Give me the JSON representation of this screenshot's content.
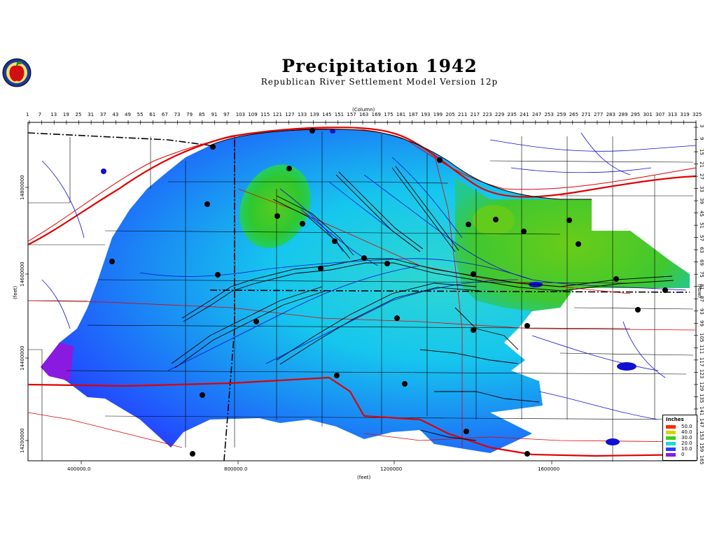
{
  "title": "Precipitation 1942",
  "subtitle": "Republican River Settlement Model Version 12p",
  "logo": {
    "icon": "apple-logo-icon"
  },
  "axes": {
    "column_label": "(Column)",
    "row_label": "(Row)",
    "x_label": "(feet)",
    "y_label": "(feet)",
    "column_ticks": [
      "1",
      "7",
      "13",
      "19",
      "25",
      "31",
      "37",
      "43",
      "49",
      "55",
      "61",
      "67",
      "73",
      "79",
      "85",
      "91",
      "97",
      "103",
      "109",
      "115",
      "121",
      "127",
      "133",
      "139",
      "145",
      "151",
      "157",
      "163",
      "169",
      "175",
      "181",
      "187",
      "193",
      "199",
      "205",
      "211",
      "217",
      "223",
      "229",
      "235",
      "241",
      "247",
      "253",
      "259",
      "265",
      "271",
      "277",
      "283",
      "289",
      "295",
      "301",
      "307",
      "313",
      "319",
      "325"
    ],
    "row_ticks": [
      "3",
      "9",
      "15",
      "21",
      "27",
      "33",
      "39",
      "45",
      "51",
      "57",
      "63",
      "69",
      "75",
      "81",
      "87",
      "93",
      "99",
      "105",
      "111",
      "117",
      "123",
      "129",
      "135",
      "141",
      "147",
      "153",
      "159",
      "165"
    ],
    "x_ticks": [
      "400000.0",
      "800000.0",
      "1200000",
      "1600000"
    ],
    "y_ticks": [
      "14800000",
      "14600000",
      "14400000",
      "14200000"
    ]
  },
  "legend": {
    "title": "Inches",
    "items": [
      {
        "label": "50.0",
        "color": "#ff2a00"
      },
      {
        "label": "40.0",
        "color": "#d4d400"
      },
      {
        "label": "30.0",
        "color": "#3fcc1a"
      },
      {
        "label": "20.0",
        "color": "#1ad7e0"
      },
      {
        "label": "10.0",
        "color": "#2a3cff"
      },
      {
        "label": "0",
        "color": "#8a1ae0"
      }
    ]
  },
  "colors": {
    "border_river": "#e00000",
    "road": "#e03030",
    "stream": "#1010d0",
    "county_line": "#000000",
    "station": "#000000"
  }
}
